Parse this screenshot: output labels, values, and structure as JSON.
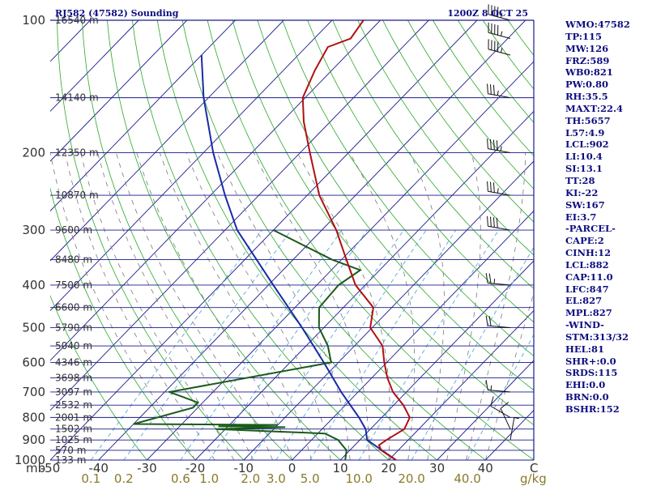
{
  "header": {
    "station": "RJ582 (47582) Sounding",
    "time": "1200Z  8 OCT 25"
  },
  "sidebar": [
    "WMO:47582",
    "TP:115",
    "MW:126",
    "FRZ:589",
    "WB0:821",
    "PW:0.80",
    "RH:35.5",
    "MAXT:22.4",
    "TH:5657",
    "L57:4.9",
    "LCL:902",
    "LI:10.4",
    "SI:13.1",
    "TT:28",
    "KI:-22",
    "SW:167",
    "EI:3.7",
    "-PARCEL-",
    "CAPE:2",
    "CINH:12",
    "LCL:882",
    "CAP:11.0",
    "LFC:847",
    "EL:827",
    "MPL:827",
    "-WIND-",
    "STM:313/32",
    "HEL:81",
    "SHR+:0.0",
    "SRDS:115",
    "EHI:0.0",
    "BRN:0.0",
    "BSHR:152"
  ],
  "colors": {
    "isobar": "#1a1a8c",
    "isotherm": "#1a1a8c",
    "dry_adiabat": "#2aa82a",
    "moist_adiabat": "#7a7a7a",
    "mixing_ratio": "#5aa8d8",
    "temperature": "#b01010",
    "dewpoint": "#1a5a1a",
    "parcel": "#1a2aa8",
    "wind_barb": "#111111"
  },
  "chart_data": {
    "type": "skew-t",
    "pressure_unit_label": "mb",
    "mixing_ratio_unit": "g/kg",
    "x_end_label": "C",
    "pressure_levels": [
      100,
      200,
      300,
      400,
      500,
      600,
      700,
      800,
      900,
      1000
    ],
    "pressure_ticks": [
      "100",
      "200",
      "300",
      "400",
      "500",
      "600",
      "700",
      "800",
      "900",
      "1000"
    ],
    "height_labels": [
      {
        "p": 100,
        "label": "16540 m"
      },
      {
        "p": 150,
        "label": "14140 m"
      },
      {
        "p": 200,
        "label": "12350 m"
      },
      {
        "p": 250,
        "label": "10870 m"
      },
      {
        "p": 300,
        "label": "9600 m"
      },
      {
        "p": 350,
        "label": "8480 m"
      },
      {
        "p": 400,
        "label": "7500 m"
      },
      {
        "p": 450,
        "label": "6600 m"
      },
      {
        "p": 500,
        "label": "5790 m"
      },
      {
        "p": 550,
        "label": "5040 m"
      },
      {
        "p": 600,
        "label": "4346 m"
      },
      {
        "p": 650,
        "label": "3698 m"
      },
      {
        "p": 700,
        "label": "3097 m"
      },
      {
        "p": 750,
        "label": "2532 m"
      },
      {
        "p": 800,
        "label": "2001 m"
      },
      {
        "p": 850,
        "label": "1502 m"
      },
      {
        "p": 900,
        "label": "1025 m"
      },
      {
        "p": 950,
        "label": "570 m"
      },
      {
        "p": 1000,
        "label": "133 m"
      }
    ],
    "temperature_ticks": [
      -50,
      -40,
      -30,
      -20,
      -10,
      0,
      10,
      20,
      30,
      40
    ],
    "temperature_range": [
      -50,
      50
    ],
    "mixing_ratio_ticks": [
      "0.1",
      "0.2",
      "0.6",
      "1.0",
      "2.0",
      "3.0",
      "5.0",
      "10.0",
      "20.0",
      "40.0"
    ],
    "mixing_ratio_values": [
      0.1,
      0.2,
      0.6,
      1.0,
      2.0,
      3.0,
      5.0,
      10.0,
      20.0,
      40.0
    ],
    "temperature_profile": [
      {
        "p": 1000,
        "t": 21.5
      },
      {
        "p": 950,
        "t": 16.5
      },
      {
        "p": 925,
        "t": 15.0
      },
      {
        "p": 900,
        "t": 15.5
      },
      {
        "p": 850,
        "t": 17.0
      },
      {
        "p": 800,
        "t": 15.8
      },
      {
        "p": 750,
        "t": 12.0
      },
      {
        "p": 700,
        "t": 7.2
      },
      {
        "p": 650,
        "t": 3.2
      },
      {
        "p": 600,
        "t": -0.5
      },
      {
        "p": 550,
        "t": -4.2
      },
      {
        "p": 500,
        "t": -10.4
      },
      {
        "p": 450,
        "t": -13.8
      },
      {
        "p": 400,
        "t": -22.0
      },
      {
        "p": 350,
        "t": -29.0
      },
      {
        "p": 300,
        "t": -37.0
      },
      {
        "p": 250,
        "t": -47.5
      },
      {
        "p": 200,
        "t": -58.0
      },
      {
        "p": 170,
        "t": -65.5
      },
      {
        "p": 150,
        "t": -70.5
      },
      {
        "p": 130,
        "t": -73.5
      },
      {
        "p": 115,
        "t": -75.5
      },
      {
        "p": 110,
        "t": -72.5
      },
      {
        "p": 100,
        "t": -73.5
      }
    ],
    "dewpoint_profile": [
      {
        "p": 1000,
        "t": 11.0
      },
      {
        "p": 950,
        "t": 9.3
      },
      {
        "p": 900,
        "t": 5.5
      },
      {
        "p": 870,
        "t": 1.5
      },
      {
        "p": 862,
        "t": -8.0
      },
      {
        "p": 850,
        "t": -22.0
      },
      {
        "p": 842,
        "t": -8.0
      },
      {
        "p": 838,
        "t": -22.0
      },
      {
        "p": 832,
        "t": -10.0
      },
      {
        "p": 828,
        "t": -40.0
      },
      {
        "p": 760,
        "t": -31.0
      },
      {
        "p": 740,
        "t": -31.0
      },
      {
        "p": 700,
        "t": -39.0
      },
      {
        "p": 600,
        "t": -11.5
      },
      {
        "p": 550,
        "t": -15.5
      },
      {
        "p": 500,
        "t": -21.0
      },
      {
        "p": 450,
        "t": -25.0
      },
      {
        "p": 400,
        "t": -25.5
      },
      {
        "p": 370,
        "t": -24.0
      },
      {
        "p": 350,
        "t": -32.0
      },
      {
        "p": 300,
        "t": -50.0
      }
    ],
    "parcel_profile": [
      {
        "p": 1000,
        "t": 21.5
      },
      {
        "p": 900,
        "t": 11.5
      },
      {
        "p": 850,
        "t": 9.0
      },
      {
        "p": 800,
        "t": 5.3
      },
      {
        "p": 700,
        "t": -3.5
      },
      {
        "p": 600,
        "t": -13.0
      },
      {
        "p": 500,
        "t": -24.5
      },
      {
        "p": 400,
        "t": -39.0
      },
      {
        "p": 300,
        "t": -57.5
      },
      {
        "p": 250,
        "t": -67.0
      },
      {
        "p": 200,
        "t": -78.0
      },
      {
        "p": 150,
        "t": -91.0
      },
      {
        "p": 120,
        "t": -100.0
      }
    ],
    "wind_barbs": [
      {
        "p": 100,
        "dir": 285,
        "spd": 45
      },
      {
        "p": 110,
        "dir": 285,
        "spd": 45
      },
      {
        "p": 120,
        "dir": 285,
        "spd": 45
      },
      {
        "p": 150,
        "dir": 280,
        "spd": 35
      },
      {
        "p": 200,
        "dir": 280,
        "spd": 45
      },
      {
        "p": 250,
        "dir": 280,
        "spd": 35
      },
      {
        "p": 300,
        "dir": 280,
        "spd": 40
      },
      {
        "p": 400,
        "dir": 275,
        "spd": 25
      },
      {
        "p": 500,
        "dir": 275,
        "spd": 20
      },
      {
        "p": 700,
        "dir": 275,
        "spd": 15
      },
      {
        "p": 800,
        "dir": 300,
        "spd": 10
      },
      {
        "p": 850,
        "dir": 335,
        "spd": 10
      },
      {
        "p": 900,
        "dir": 10,
        "spd": 5
      }
    ]
  }
}
